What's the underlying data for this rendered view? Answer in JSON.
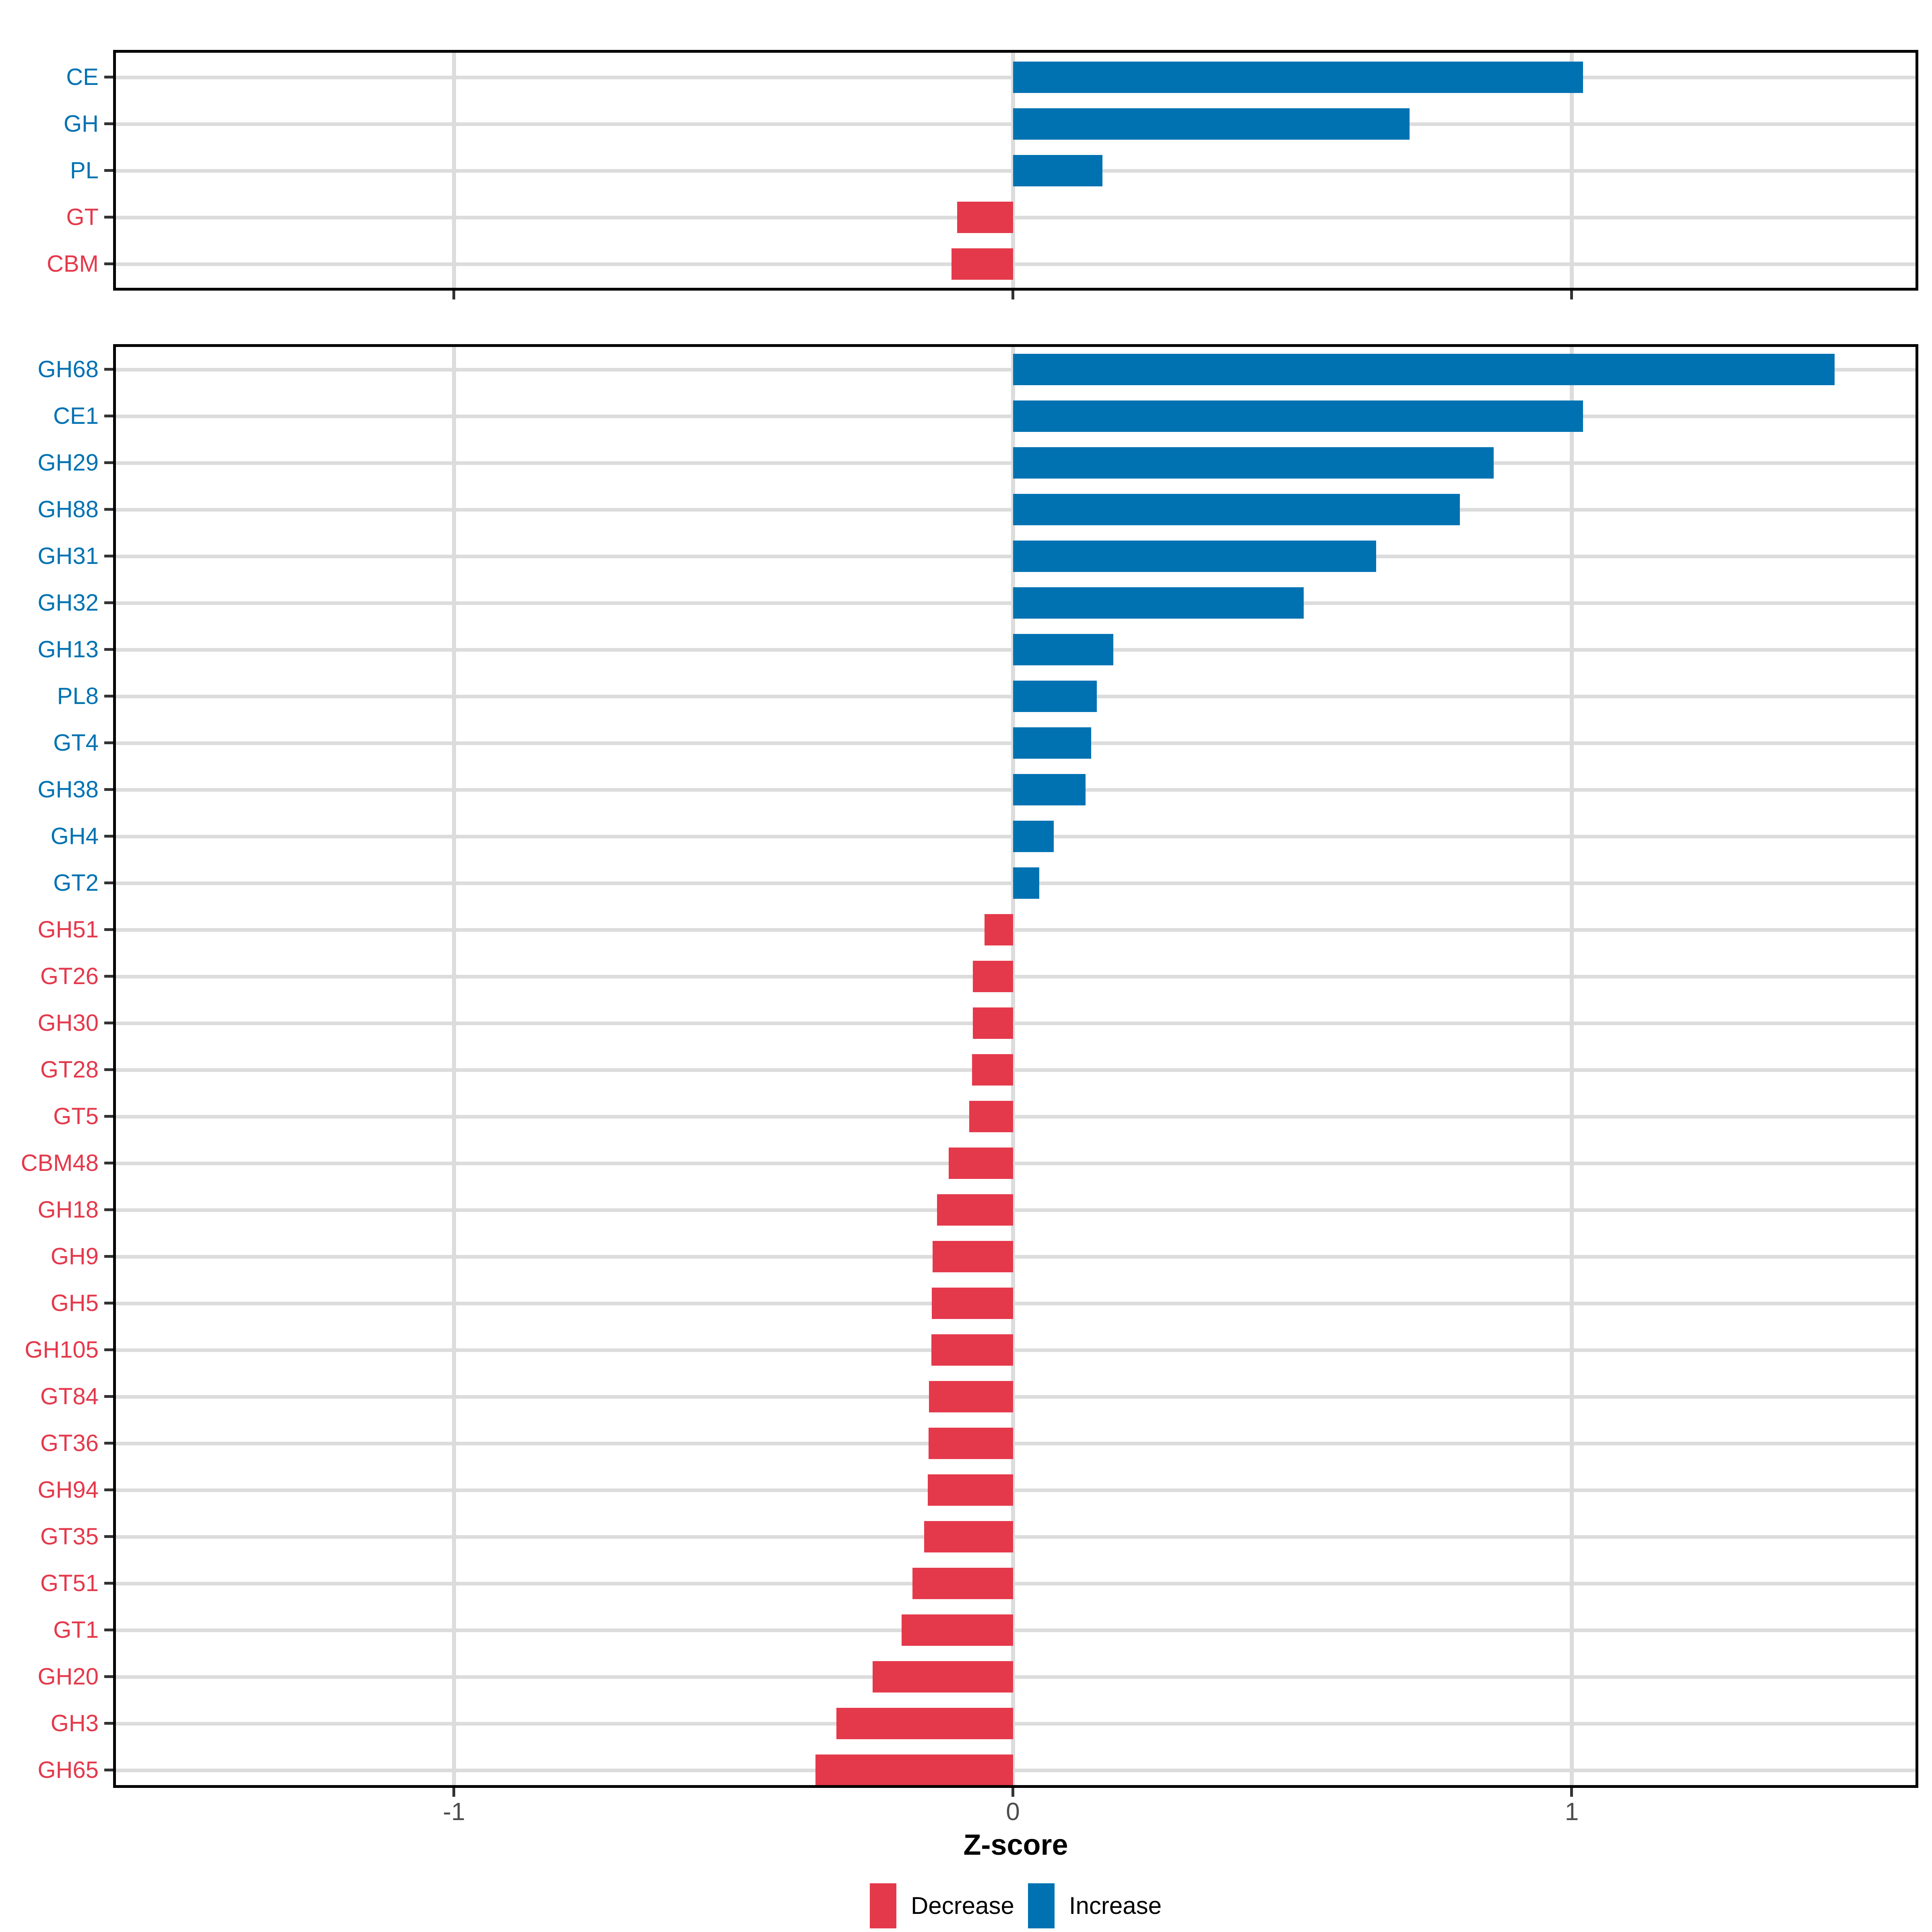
{
  "colors": {
    "increase": "#0072B2",
    "decrease": "#E4394B",
    "grid": "#DCDCDC",
    "axis_border": "#000000",
    "tick_mark": "#333333",
    "tick_label": "#4D4D4D",
    "xlabel_text": "#000000",
    "legend_text": "#000000",
    "background": "#FFFFFF"
  },
  "chart_data": {
    "type": "bar",
    "orientation": "horizontal",
    "title": "",
    "xlabel": "Z-score",
    "ylabel": "",
    "x_ticks": [
      -1,
      0,
      1
    ],
    "x_tick_labels": [
      "-1",
      "0",
      "1"
    ],
    "xlim": [
      -1.61,
      1.62
    ],
    "grid": true,
    "legend": {
      "position": "bottom",
      "entries": [
        {
          "label": "Decrease",
          "color_key": "decrease"
        },
        {
          "label": "Increase",
          "color_key": "increase"
        }
      ]
    },
    "panels": [
      {
        "name": "cazyme-classes",
        "bars": [
          {
            "label": "CE",
            "value": 1.02,
            "direction": "increase"
          },
          {
            "label": "GH",
            "value": 0.71,
            "direction": "increase"
          },
          {
            "label": "PL",
            "value": 0.16,
            "direction": "increase"
          },
          {
            "label": "GT",
            "value": -0.1,
            "direction": "decrease"
          },
          {
            "label": "CBM",
            "value": -0.11,
            "direction": "decrease"
          }
        ]
      },
      {
        "name": "cazyme-families",
        "bars": [
          {
            "label": "GH68",
            "value": 1.47,
            "direction": "increase"
          },
          {
            "label": "CE1",
            "value": 1.02,
            "direction": "increase"
          },
          {
            "label": "GH29",
            "value": 0.86,
            "direction": "increase"
          },
          {
            "label": "GH88",
            "value": 0.8,
            "direction": "increase"
          },
          {
            "label": "GH31",
            "value": 0.65,
            "direction": "increase"
          },
          {
            "label": "GH32",
            "value": 0.52,
            "direction": "increase"
          },
          {
            "label": "GH13",
            "value": 0.18,
            "direction": "increase"
          },
          {
            "label": "PL8",
            "value": 0.15,
            "direction": "increase"
          },
          {
            "label": "GT4",
            "value": 0.14,
            "direction": "increase"
          },
          {
            "label": "GH38",
            "value": 0.13,
            "direction": "increase"
          },
          {
            "label": "GH4",
            "value": 0.073,
            "direction": "increase"
          },
          {
            "label": "GT2",
            "value": 0.047,
            "direction": "increase"
          },
          {
            "label": "GH51",
            "value": -0.051,
            "direction": "decrease"
          },
          {
            "label": "GT26",
            "value": -0.072,
            "direction": "decrease"
          },
          {
            "label": "GH30",
            "value": -0.072,
            "direction": "decrease"
          },
          {
            "label": "GT28",
            "value": -0.073,
            "direction": "decrease"
          },
          {
            "label": "GT5",
            "value": -0.078,
            "direction": "decrease"
          },
          {
            "label": "CBM48",
            "value": -0.115,
            "direction": "decrease"
          },
          {
            "label": "GH18",
            "value": -0.136,
            "direction": "decrease"
          },
          {
            "label": "GH9",
            "value": -0.144,
            "direction": "decrease"
          },
          {
            "label": "GH5",
            "value": -0.145,
            "direction": "decrease"
          },
          {
            "label": "GH105",
            "value": -0.146,
            "direction": "decrease"
          },
          {
            "label": "GT84",
            "value": -0.15,
            "direction": "decrease"
          },
          {
            "label": "GT36",
            "value": -0.151,
            "direction": "decrease"
          },
          {
            "label": "GH94",
            "value": -0.152,
            "direction": "decrease"
          },
          {
            "label": "GT35",
            "value": -0.159,
            "direction": "decrease"
          },
          {
            "label": "GT51",
            "value": -0.18,
            "direction": "decrease"
          },
          {
            "label": "GT1",
            "value": -0.199,
            "direction": "decrease"
          },
          {
            "label": "GH20",
            "value": -0.251,
            "direction": "decrease"
          },
          {
            "label": "GH3",
            "value": -0.316,
            "direction": "decrease"
          },
          {
            "label": "GH65",
            "value": -0.353,
            "direction": "decrease"
          }
        ]
      }
    ]
  }
}
